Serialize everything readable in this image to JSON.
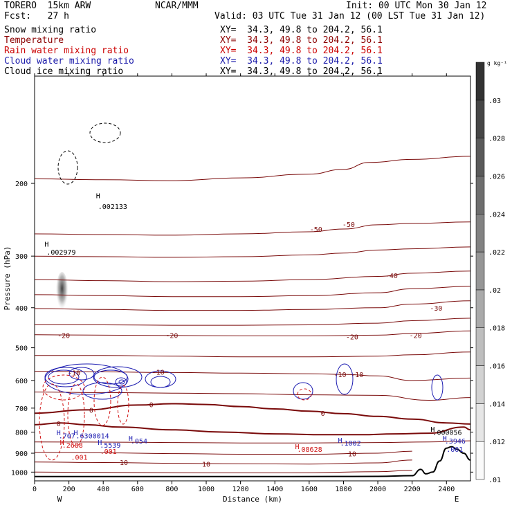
{
  "header": {
    "model": "TORERO  15km ARW",
    "center": "NCAR/MMM",
    "init": "Init: 00 UTC Mon 30 Jan 12",
    "fcst": "Fcst:   27 h",
    "valid": "Valid: 03 UTC Tue 31 Jan 12 (00 LST Tue 31 Jan 12)"
  },
  "fields": [
    {
      "name": "Snow mixing ratio",
      "xy": "XY=  34.3, 49.8 to 204.2, 56.1",
      "color": "#000000"
    },
    {
      "name": "Temperature",
      "xy": "XY=  34.3, 49.8 to 204.2, 56.1",
      "color": "#8b0000"
    },
    {
      "name": "Rain water mixing ratio",
      "xy": "XY=  34.3, 49.8 to 204.2, 56.1",
      "color": "#cc0000"
    },
    {
      "name": "Cloud water mixing ratio",
      "xy": "XY=  34.3, 49.8 to 204.2, 56.1",
      "color": "#1a1aaa"
    },
    {
      "name": "Cloud ice mixing ratio",
      "xy": "XY=  34.3, 49.8 to 204.2, 56.1",
      "color": "#000000"
    }
  ],
  "colors": {
    "temperature": "#7a0a0a",
    "rain": "#d01010",
    "cloud_water": "#1a1ab0",
    "cloud_ice": "#000000",
    "terrain": "#000000"
  },
  "chart_data": {
    "type": "contour",
    "xlabel": "Distance (km)",
    "ylabel": "Pressure (hPa)",
    "xlim": [
      0,
      2540
    ],
    "ylim": [
      1050,
      110
    ],
    "y_log": true,
    "x_ticks": [
      0,
      200,
      400,
      600,
      800,
      1000,
      1200,
      1400,
      1600,
      1800,
      2000,
      2200,
      2400
    ],
    "y_ticks": [
      200,
      300,
      400,
      500,
      600,
      700,
      800,
      900,
      1000
    ],
    "endpoints": {
      "left": "W",
      "right": "E"
    },
    "colorbar": {
      "unit": "g kg⁻¹",
      "ticks": [
        ".03",
        ".028",
        ".026",
        ".024",
        ".022",
        ".02",
        ".018",
        ".016",
        ".014",
        ".012",
        ".01"
      ],
      "levels": [
        0.01,
        0.012,
        0.014,
        0.016,
        0.018,
        0.02,
        0.022,
        0.024,
        0.026,
        0.028,
        0.03,
        0.032
      ]
    },
    "temperature_isotherms": [
      {
        "t": -55,
        "x": [
          0,
          400,
          800,
          1200,
          1600,
          1800,
          1950,
          2200,
          2540
        ],
        "p": [
          195,
          196,
          197,
          194,
          190,
          185,
          178,
          175,
          172
        ]
      },
      {
        "t": -50,
        "x": [
          0,
          400,
          800,
          1200,
          1600,
          1800,
          2000,
          2200,
          2540
        ],
        "p": [
          265,
          266,
          267,
          265,
          262,
          258,
          252,
          250,
          248
        ]
      },
      {
        "t": -45,
        "x": [
          0,
          400,
          800,
          1200,
          1600,
          1800,
          2000,
          2200,
          2540
        ],
        "p": [
          300,
          301,
          302,
          301,
          298,
          295,
          290,
          288,
          285
        ]
      },
      {
        "t": -40,
        "x": [
          0,
          400,
          800,
          1200,
          1600,
          2000,
          2200,
          2540
        ],
        "p": [
          342,
          344,
          346,
          345,
          342,
          336,
          330,
          326
        ]
      },
      {
        "t": -35,
        "x": [
          0,
          400,
          800,
          1200,
          1600,
          2000,
          2200,
          2540
        ],
        "p": [
          372,
          374,
          376,
          376,
          374,
          368,
          360,
          355
        ]
      },
      {
        "t": -30,
        "x": [
          0,
          400,
          800,
          1200,
          1600,
          2000,
          2200,
          2540
        ],
        "p": [
          402,
          404,
          406,
          406,
          404,
          400,
          392,
          385
        ]
      },
      {
        "t": -25,
        "x": [
          0,
          400,
          800,
          1200,
          1600,
          2000,
          2200,
          2540
        ],
        "p": [
          440,
          440,
          441,
          441,
          440,
          436,
          430,
          424
        ]
      },
      {
        "t": -20,
        "x": [
          0,
          400,
          800,
          1200,
          1600,
          2000,
          2200,
          2540
        ],
        "p": [
          465,
          466,
          467,
          468,
          468,
          466,
          462,
          455
        ]
      },
      {
        "t": -15,
        "x": [
          0,
          400,
          800,
          1200,
          1600,
          2000,
          2200,
          2540
        ],
        "p": [
          522,
          522,
          524,
          526,
          526,
          524,
          520,
          512
        ]
      },
      {
        "t": -10,
        "x": [
          0,
          400,
          800,
          1200,
          1600,
          1800,
          2000,
          2200,
          2540
        ],
        "p": [
          570,
          572,
          574,
          576,
          578,
          580,
          585,
          600,
          592
        ]
      },
      {
        "t": -5,
        "x": [
          0,
          400,
          800,
          1200,
          1600,
          2000,
          2300,
          2540
        ],
        "p": [
          640,
          642,
          644,
          646,
          650,
          652,
          670,
          660
        ]
      },
      {
        "t": 0,
        "x": [
          0,
          300,
          600,
          800,
          1000,
          1200,
          1400,
          1600,
          1800,
          2000,
          2200,
          2400,
          2540
        ],
        "p": [
          720,
          707,
          688,
          683,
          686,
          694,
          703,
          712,
          722,
          733,
          744,
          760,
          765
        ],
        "bold": true
      },
      {
        "t": 0,
        "x": [
          0,
          150,
          300,
          500,
          800,
          1100,
          1400,
          1700,
          1900,
          2100,
          2300,
          2500,
          2540
        ],
        "p": [
          768,
          760,
          768,
          778,
          790,
          800,
          808,
          812,
          812,
          808,
          805,
          778,
          790
        ],
        "bold": true
      },
      {
        "t": 5,
        "x": [
          0,
          400,
          800,
          1200,
          1600,
          2000,
          2300,
          2540
        ],
        "p": [
          845,
          846,
          848,
          850,
          850,
          848,
          845,
          840
        ]
      },
      {
        "t": 10,
        "x": [
          0,
          400,
          800,
          1200,
          1600,
          2000,
          2200
        ],
        "p": [
          895,
          898,
          902,
          905,
          905,
          900,
          890
        ]
      },
      {
        "t": 10,
        "x": [
          0,
          400,
          800,
          1200,
          1600,
          2000,
          2200
        ],
        "p": [
          945,
          948,
          952,
          955,
          956,
          950,
          935
        ]
      },
      {
        "t": 10,
        "x": [
          0,
          500,
          1000,
          1500,
          2000,
          2200
        ],
        "p": [
          1000,
          1002,
          1004,
          1004,
          998,
          990
        ]
      }
    ],
    "temperature_labels": [
      {
        "text": "-50",
        "x": 1640,
        "p": 258
      },
      {
        "text": "-50",
        "x": 1830,
        "p": 251
      },
      {
        "text": "-40",
        "x": 2080,
        "p": 334
      },
      {
        "text": "-30",
        "x": 2340,
        "p": 400
      },
      {
        "text": "-20",
        "x": 170,
        "p": 466
      },
      {
        "text": "-20",
        "x": 800,
        "p": 466
      },
      {
        "text": "-20",
        "x": 1850,
        "p": 470
      },
      {
        "text": "-20",
        "x": 2220,
        "p": 466
      },
      {
        "text": "-10",
        "x": 230,
        "p": 574
      },
      {
        "text": "-10",
        "x": 720,
        "p": 572
      },
      {
        "text": "-10",
        "x": 1780,
        "p": 580
      },
      {
        "text": "-10",
        "x": 1880,
        "p": 580
      },
      {
        "text": "0",
        "x": 330,
        "p": 707
      },
      {
        "text": "0",
        "x": 680,
        "p": 686
      },
      {
        "text": "0",
        "x": 1680,
        "p": 720
      },
      {
        "text": "0",
        "x": 140,
        "p": 762
      },
      {
        "text": "10",
        "x": 520,
        "p": 947
      },
      {
        "text": "10",
        "x": 1000,
        "p": 955
      },
      {
        "text": "10",
        "x": 1850,
        "p": 902
      }
    ],
    "terrain": {
      "x": [
        0,
        500,
        1000,
        1500,
        2000,
        2200,
        2250,
        2280,
        2320,
        2360,
        2400,
        2430,
        2460,
        2500,
        2540
      ],
      "p": [
        1025,
        1025,
        1025,
        1025,
        1024,
        1020,
        985,
        1010,
        1000,
        940,
        875,
        868,
        880,
        900,
        935
      ]
    },
    "snow_max": [
      {
        "label": "H",
        "value": ".002133",
        "x": 360,
        "p": 232
      },
      {
        "label": "H",
        "value": ".002979",
        "x": 60,
        "p": 298
      }
    ],
    "cloud_ice_max": {
      "label": "H",
      "value": ".000056",
      "x": 2320,
      "p": 800
    },
    "cloud_water_max": [
      {
        "label": "H",
        "value": ".707",
        "x": 140,
        "p": 815
      },
      {
        "label": "H",
        "value": ".6300014",
        "x": 240,
        "p": 815
      },
      {
        "label": "H",
        "value": ".5539",
        "x": 380,
        "p": 860
      },
      {
        "label": "H",
        "value": ".054",
        "x": 560,
        "p": 840
      },
      {
        "label": "H",
        "value": ".1002",
        "x": 1780,
        "p": 850
      },
      {
        "label": "H",
        "value": ".3946",
        "x": 2390,
        "p": 840
      },
      {
        "label": "",
        "value": ".001",
        "x": 2400,
        "p": 880
      }
    ],
    "rain_max": [
      {
        "label": "H",
        "value": ".2688",
        "x": 160,
        "p": 860
      },
      {
        "label": "H",
        "value": ".08628",
        "x": 1530,
        "p": 880
      }
    ],
    "rain_labels": [
      {
        "text": ".001",
        "x": 430,
        "p": 890
      },
      {
        "text": ".001",
        "x": 260,
        "p": 920
      }
    ]
  }
}
